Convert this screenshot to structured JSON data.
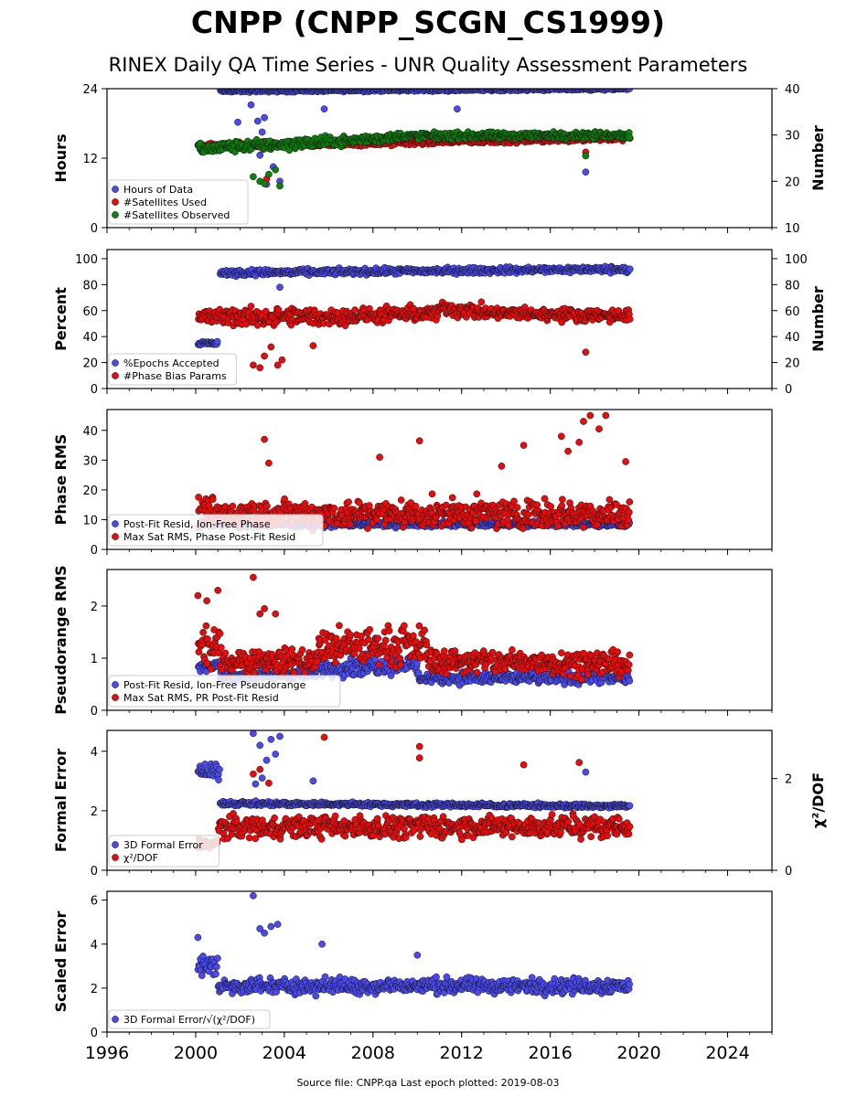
{
  "title": "CNPP (CNPP_SCGN_CS1999)",
  "subtitle": "RINEX Daily QA Time Series - UNR Quality Assessment Parameters",
  "footer": "Source file: CNPP.qa Last epoch plotted: 2019-08-03",
  "colors": {
    "blue": "#4a4af0",
    "red": "#e80c0c",
    "green": "#0c820c"
  },
  "x_axis": {
    "ticks": [
      "1996",
      "2000",
      "2004",
      "2008",
      "2012",
      "2016",
      "2020",
      "2024"
    ],
    "range": [
      1996,
      2026
    ]
  },
  "chart_data": [
    {
      "type": "scatter",
      "ylabel": "Hours",
      "ylim": [
        0,
        24
      ],
      "yticks": [
        "0",
        "12",
        "24"
      ],
      "y2label": "Number",
      "y2lim": [
        10,
        40
      ],
      "y2ticks": [
        "10",
        "20",
        "30",
        "40"
      ],
      "legend": [
        "Hours of Data",
        "#Satellites Used",
        "#Satellites Observed"
      ],
      "series": [
        {
          "name": "Hours of Data",
          "color": "blue",
          "axis": "left",
          "segments": [
            {
              "x": [
                2001.1,
                2019.6
              ],
              "y": [
                23.6,
                24.0
              ],
              "spread": 0.2
            }
          ],
          "outliers": [
            [
              2001.9,
              18.2
            ],
            [
              2002.5,
              21.2
            ],
            [
              2002.8,
              18.4
            ],
            [
              2002.9,
              12.5
            ],
            [
              2003.0,
              16.5
            ],
            [
              2003.1,
              19.0
            ],
            [
              2003.2,
              7.5
            ],
            [
              2003.4,
              14.0
            ],
            [
              2003.5,
              10.5
            ],
            [
              2003.8,
              8.0
            ],
            [
              2005.8,
              20.5
            ],
            [
              2011.8,
              20.5
            ],
            [
              2017.6,
              9.6
            ]
          ]
        },
        {
          "name": "#Satellites Used",
          "color": "red",
          "axis": "right",
          "segments": [
            {
              "x": [
                2000.1,
                2019.6
              ],
              "y": [
                27.5,
                29.5
              ],
              "spread": 0.6
            }
          ],
          "outliers": [
            [
              2003.2,
              20.5
            ],
            [
              2017.6,
              26.3
            ]
          ]
        },
        {
          "name": "#Satellites Observed",
          "color": "green",
          "axis": "right",
          "segments": [
            {
              "x": [
                2000.1,
                2001.0
              ],
              "y": [
                27.0,
                27.0
              ],
              "spread": 1.0
            },
            {
              "x": [
                2001.0,
                2006.0
              ],
              "y": [
                27.3,
                28.5
              ],
              "spread": 1.0
            },
            {
              "x": [
                2006.0,
                2009.0
              ],
              "y": [
                28.5,
                29.5
              ],
              "spread": 0.8
            },
            {
              "x": [
                2009.0,
                2019.6
              ],
              "y": [
                29.8,
                30.0
              ],
              "spread": 0.6
            }
          ],
          "outliers": [
            [
              2002.6,
              21.0
            ],
            [
              2002.9,
              20.0
            ],
            [
              2003.1,
              19.5
            ],
            [
              2003.3,
              21.5
            ],
            [
              2003.6,
              22.5
            ],
            [
              2003.8,
              19.0
            ],
            [
              2017.6,
              25.5
            ]
          ]
        }
      ]
    },
    {
      "type": "scatter",
      "ylabel": "Percent",
      "ylim": [
        0,
        107
      ],
      "yticks": [
        "0",
        "20",
        "40",
        "60",
        "80",
        "100"
      ],
      "y2label": "Number",
      "y2lim": [
        0,
        107
      ],
      "y2ticks": [
        "0",
        "20",
        "40",
        "60",
        "80",
        "100"
      ],
      "legend": [
        "%Epochs Accepted",
        "#Phase Bias Params"
      ],
      "series": [
        {
          "name": "%Epochs Accepted",
          "color": "blue",
          "axis": "left",
          "segments": [
            {
              "x": [
                2000.1,
                2001.0
              ],
              "y": [
                35.0,
                35.0
              ],
              "spread": 1.5
            },
            {
              "x": [
                2001.1,
                2019.6
              ],
              "y": [
                89.0,
                92.0
              ],
              "spread": 2.0
            }
          ],
          "outliers": [
            [
              2003.8,
              78.0
            ]
          ]
        },
        {
          "name": "#Phase Bias Params",
          "color": "red",
          "axis": "right",
          "segments": [
            {
              "x": [
                2000.1,
                2006.0
              ],
              "y": [
                55.0,
                55.0
              ],
              "spread": 6.0
            },
            {
              "x": [
                2006.0,
                2011.0
              ],
              "y": [
                55.0,
                58.0
              ],
              "spread": 5.0
            },
            {
              "x": [
                2011.0,
                2013.0
              ],
              "y": [
                62.0,
                59.0
              ],
              "spread": 5.0
            },
            {
              "x": [
                2013.0,
                2019.6
              ],
              "y": [
                58.0,
                56.0
              ],
              "spread": 4.0
            }
          ],
          "outliers": [
            [
              2002.6,
              18.0
            ],
            [
              2002.9,
              16.0
            ],
            [
              2003.1,
              25.0
            ],
            [
              2003.4,
              32.0
            ],
            [
              2003.7,
              18.0
            ],
            [
              2003.9,
              22.0
            ],
            [
              2005.3,
              33.0
            ],
            [
              2017.6,
              28.0
            ]
          ]
        }
      ]
    },
    {
      "type": "scatter",
      "ylabel": "Phase RMS",
      "ylim": [
        0,
        47
      ],
      "yticks": [
        "0",
        "10",
        "20",
        "30",
        "40"
      ],
      "legend": [
        "Post-Fit Resid, Ion-Free Phase",
        "Max Sat RMS, Phase Post-Fit Resid"
      ],
      "series": [
        {
          "name": "Post-Fit Resid, Ion-Free Phase",
          "color": "blue",
          "axis": "left",
          "segments": [
            {
              "x": [
                2000.1,
                2019.6
              ],
              "y": [
                8.5,
                8.5
              ],
              "spread": 0.8
            }
          ],
          "outliers": []
        },
        {
          "name": "Max Sat RMS, Phase Post-Fit Resid",
          "color": "red",
          "axis": "left",
          "segments": [
            {
              "x": [
                2000.1,
                2019.6
              ],
              "y": [
                12.0,
                12.0
              ],
              "spread": 4.0
            }
          ],
          "outliers": [
            [
              2003.1,
              37.0
            ],
            [
              2010.1,
              36.5
            ],
            [
              2008.3,
              31.0
            ],
            [
              2014.8,
              35.0
            ],
            [
              2016.5,
              38.0
            ],
            [
              2016.8,
              33.0
            ],
            [
              2017.3,
              36.0
            ],
            [
              2017.5,
              43.0
            ],
            [
              2017.8,
              45.0
            ],
            [
              2018.2,
              40.5
            ],
            [
              2018.5,
              45.0
            ],
            [
              2019.4,
              29.5
            ],
            [
              2003.3,
              29.0
            ],
            [
              2013.8,
              28.0
            ]
          ]
        }
      ]
    },
    {
      "type": "scatter",
      "ylabel": "Pseudorange RMS",
      "ylim": [
        0,
        2.7
      ],
      "yticks": [
        "0",
        "1",
        "2"
      ],
      "legend": [
        "Post-Fit Resid, Ion-Free Pseudorange",
        "Max Sat RMS, PR Post-Fit Resid"
      ],
      "series": [
        {
          "name": "Post-Fit Resid, Ion-Free Pseudorange",
          "color": "blue",
          "axis": "left",
          "segments": [
            {
              "x": [
                2000.1,
                2001.1
              ],
              "y": [
                0.85,
                0.85
              ],
              "spread": 0.08
            },
            {
              "x": [
                2001.1,
                2005.5
              ],
              "y": [
                0.65,
                0.7
              ],
              "spread": 0.08
            },
            {
              "x": [
                2005.5,
                2010.0
              ],
              "y": [
                0.8,
                0.9
              ],
              "spread": 0.15
            },
            {
              "x": [
                2010.0,
                2019.6
              ],
              "y": [
                0.62,
                0.62
              ],
              "spread": 0.1
            }
          ],
          "outliers": []
        },
        {
          "name": "Max Sat RMS, PR Post-Fit Resid",
          "color": "red",
          "axis": "left",
          "segments": [
            {
              "x": [
                2000.1,
                2001.1
              ],
              "y": [
                1.2,
                1.2
              ],
              "spread": 0.3
            },
            {
              "x": [
                2001.1,
                2005.5
              ],
              "y": [
                0.95,
                0.95
              ],
              "spread": 0.2
            },
            {
              "x": [
                2005.5,
                2010.5
              ],
              "y": [
                1.2,
                1.25
              ],
              "spread": 0.3
            },
            {
              "x": [
                2010.5,
                2019.6
              ],
              "y": [
                0.95,
                0.9
              ],
              "spread": 0.2
            }
          ],
          "outliers": [
            [
              2000.1,
              2.2
            ],
            [
              2002.6,
              2.55
            ],
            [
              2000.5,
              2.1
            ],
            [
              2001.0,
              2.3
            ],
            [
              2003.1,
              1.95
            ],
            [
              2003.6,
              1.85
            ],
            [
              2002.9,
              1.85
            ]
          ]
        }
      ]
    },
    {
      "type": "scatter",
      "ylabel": "Formal Error",
      "ylim": [
        0,
        4.7
      ],
      "yticks": [
        "0",
        "2",
        "4"
      ],
      "y2label": "χ²/DOF",
      "y2lim": [
        0,
        3.05
      ],
      "y2ticks": [
        "0",
        "2"
      ],
      "legend": [
        "3D Formal Error",
        "χ²/DOF"
      ],
      "series": [
        {
          "name": "3D Formal Error",
          "color": "blue",
          "axis": "left",
          "segments": [
            {
              "x": [
                2000.1,
                2001.1
              ],
              "y": [
                3.3,
                3.3
              ],
              "spread": 0.2
            },
            {
              "x": [
                2001.1,
                2019.6
              ],
              "y": [
                2.25,
                2.15
              ],
              "spread": 0.06
            }
          ],
          "outliers": [
            [
              2002.6,
              4.6
            ],
            [
              2002.9,
              4.2
            ],
            [
              2003.2,
              3.7
            ],
            [
              2003.4,
              4.4
            ],
            [
              2003.6,
              3.9
            ],
            [
              2003.8,
              4.5
            ],
            [
              2002.7,
              2.9
            ],
            [
              2003.0,
              3.1
            ],
            [
              2005.3,
              3.0
            ],
            [
              2017.6,
              3.3
            ]
          ]
        },
        {
          "name": "χ²/DOF",
          "color": "red",
          "axis": "right",
          "segments": [
            {
              "x": [
                2000.1,
                2001.0
              ],
              "y": [
                0.58,
                0.58
              ],
              "spread": 0.1
            },
            {
              "x": [
                2001.0,
                2019.6
              ],
              "y": [
                0.95,
                0.95
              ],
              "spread": 0.2
            }
          ],
          "outliers": [
            [
              2005.8,
              2.9
            ],
            [
              2010.1,
              2.7
            ],
            [
              2010.1,
              2.45
            ],
            [
              2014.8,
              2.3
            ],
            [
              2017.3,
              2.35
            ],
            [
              2002.6,
              2.1
            ],
            [
              2002.9,
              2.2
            ],
            [
              2003.3,
              1.9
            ]
          ]
        }
      ]
    },
    {
      "type": "scatter",
      "ylabel": "Scaled Error",
      "ylim": [
        0,
        6.4
      ],
      "yticks": [
        "0",
        "2",
        "4",
        "6"
      ],
      "legend": [
        "3D Formal Error/√(χ²/DOF)"
      ],
      "series": [
        {
          "name": "3D Formal Error/√(χ²/DOF)",
          "color": "blue",
          "axis": "left",
          "segments": [
            {
              "x": [
                2000.1,
                2001.0
              ],
              "y": [
                3.0,
                3.0
              ],
              "spread": 0.4
            },
            {
              "x": [
                2001.0,
                2019.6
              ],
              "y": [
                2.1,
                2.1
              ],
              "spread": 0.3
            }
          ],
          "outliers": [
            [
              2000.1,
              4.3
            ],
            [
              2002.6,
              6.2
            ],
            [
              2002.9,
              4.7
            ],
            [
              2003.1,
              4.5
            ],
            [
              2003.4,
              4.8
            ],
            [
              2003.7,
              4.9
            ],
            [
              2005.7,
              4.0
            ],
            [
              2010.0,
              3.5
            ]
          ]
        }
      ]
    }
  ]
}
